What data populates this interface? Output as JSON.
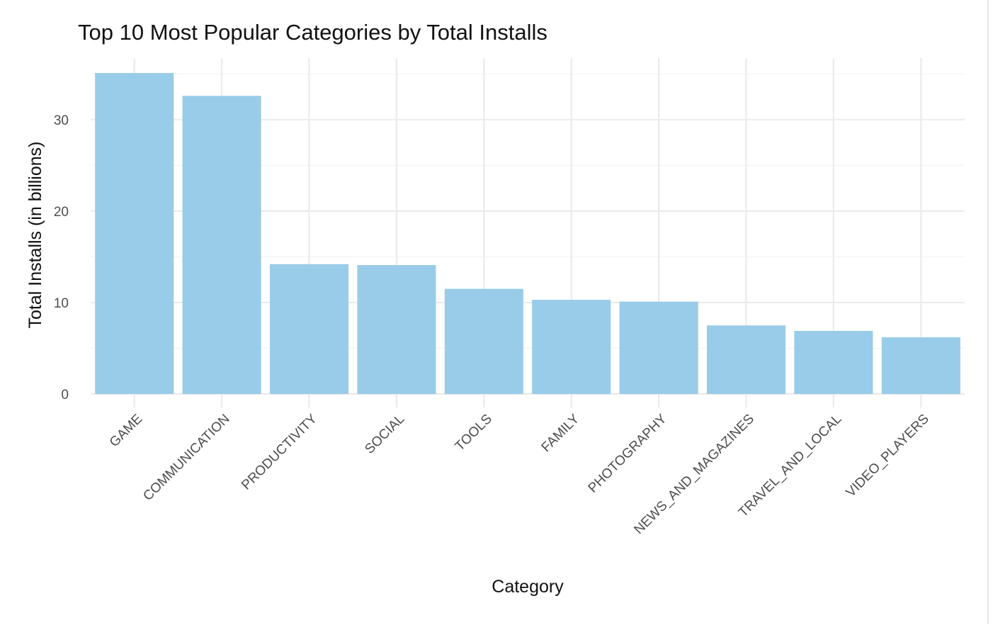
{
  "chart_data": {
    "type": "bar",
    "title": "Top 10 Most Popular Categories by Total Installs",
    "xlabel": "Category",
    "ylabel": "Total Installs (in billions)",
    "categories": [
      "GAME",
      "COMMUNICATION",
      "PRODUCTIVITY",
      "SOCIAL",
      "TOOLS",
      "FAMILY",
      "PHOTOGRAPHY",
      "NEWS_AND_MAGAZINES",
      "TRAVEL_AND_LOCAL",
      "VIDEO_PLAYERS"
    ],
    "values": [
      35.1,
      32.6,
      14.2,
      14.1,
      11.5,
      10.3,
      10.1,
      7.5,
      6.9,
      6.2
    ],
    "yticks": [
      0,
      10,
      20,
      30
    ],
    "ylim": [
      0,
      35.1
    ],
    "grid": true,
    "bar_color": "#99cce8",
    "grid_major_color": "#ebebeb",
    "grid_minor_color": "#f3f3f3"
  }
}
